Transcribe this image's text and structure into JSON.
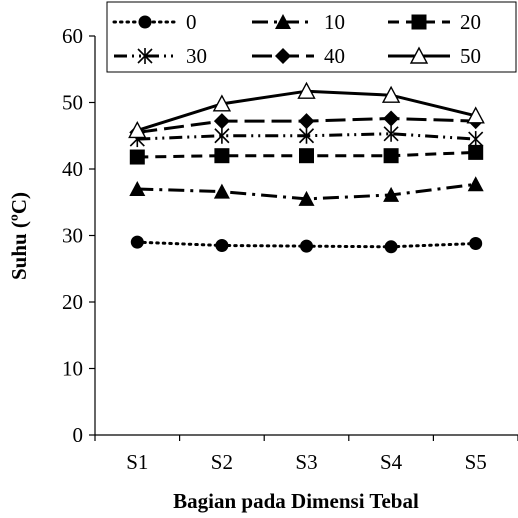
{
  "chart_data": {
    "type": "line",
    "title": "",
    "xlabel": "Bagian pada Dimensi Tebal",
    "ylabel": "Suhu (ºC)",
    "categories": [
      "S1",
      "S2",
      "S3",
      "S4",
      "S5"
    ],
    "ylim": [
      0,
      60
    ],
    "yticks": [
      0,
      10,
      20,
      30,
      40,
      50,
      60
    ],
    "grid": false,
    "legend_position": "top",
    "series": [
      {
        "name": "0",
        "values": [
          29.0,
          28.5,
          28.4,
          28.3,
          28.8
        ],
        "marker": "circle-filled",
        "dash": "dotted"
      },
      {
        "name": "10",
        "values": [
          37.0,
          36.6,
          35.5,
          36.1,
          37.7
        ],
        "marker": "triangle-filled",
        "dash": "long-dash-dot"
      },
      {
        "name": "20",
        "values": [
          41.8,
          42.0,
          42.0,
          42.0,
          42.5
        ],
        "marker": "square-filled",
        "dash": "dashed"
      },
      {
        "name": "30",
        "values": [
          44.5,
          45.0,
          45.0,
          45.3,
          44.5
        ],
        "marker": "asterisk",
        "dash": "dash-dot-dot"
      },
      {
        "name": "40",
        "values": [
          45.5,
          47.2,
          47.2,
          47.6,
          47.2
        ],
        "marker": "diamond-filled",
        "dash": "long-dash"
      },
      {
        "name": "50",
        "values": [
          45.8,
          49.8,
          51.7,
          51.1,
          48.0
        ],
        "marker": "triangle-open",
        "dash": "solid"
      }
    ]
  }
}
